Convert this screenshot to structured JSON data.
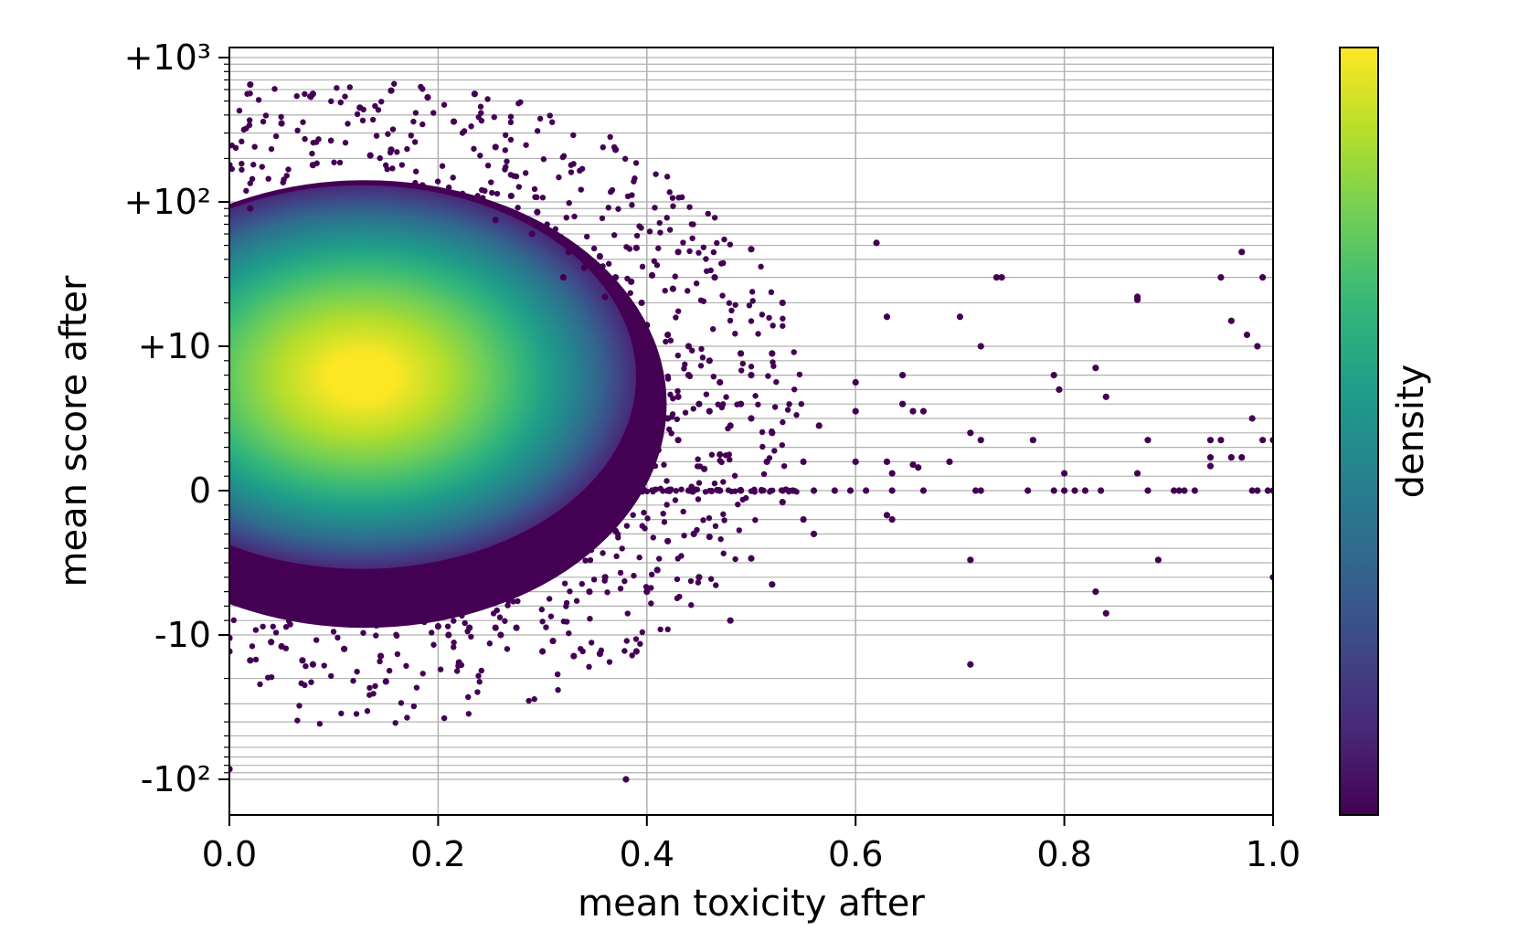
{
  "chart_data": {
    "type": "scatter",
    "title": "",
    "xlabel": "mean toxicity after",
    "ylabel": "mean score after",
    "xlim": [
      0.0,
      1.0
    ],
    "ylim": [
      -180,
      1300
    ],
    "yscale": "symlog",
    "ylinthresh": 10,
    "grid": true,
    "x_ticks": [
      {
        "value": 0.0,
        "label": "0.0"
      },
      {
        "value": 0.2,
        "label": "0.2"
      },
      {
        "value": 0.4,
        "label": "0.4"
      },
      {
        "value": 0.6,
        "label": "0.6"
      },
      {
        "value": 0.8,
        "label": "0.8"
      },
      {
        "value": 1.0,
        "label": "1.0"
      }
    ],
    "y_ticks": [
      {
        "value": 1000,
        "label": "+10³"
      },
      {
        "value": 100,
        "label": "+10²"
      },
      {
        "value": 10,
        "label": "+10"
      },
      {
        "value": 0,
        "label": "0"
      },
      {
        "value": -10,
        "label": "-10"
      },
      {
        "value": -100,
        "label": "-10²"
      }
    ],
    "colorbar": {
      "label": "density",
      "colormap": "viridis",
      "colors": [
        "#440154",
        "#482878",
        "#3e4989",
        "#31688e",
        "#26828e",
        "#1f9e89",
        "#35b779",
        "#6ece58",
        "#b5de2b",
        "#fde725"
      ]
    },
    "density_peak": {
      "x": 0.12,
      "y": 8.5
    },
    "points": [
      [
        0.02,
        650
      ],
      [
        0.08,
        560
      ],
      [
        0.125,
        450
      ],
      [
        0.155,
        590
      ],
      [
        0.19,
        530
      ],
      [
        0.235,
        560
      ],
      [
        0.05,
        350
      ],
      [
        0.215,
        360
      ],
      [
        0.0,
        180
      ],
      [
        0.08,
        180
      ],
      [
        0.135,
        210
      ],
      [
        0.155,
        230
      ],
      [
        0.185,
        130
      ],
      [
        0.255,
        240
      ],
      [
        0.37,
        230
      ],
      [
        0.27,
        110
      ],
      [
        0.295,
        85
      ],
      [
        0.02,
        90
      ],
      [
        0.39,
        48
      ],
      [
        0.43,
        45
      ],
      [
        0.5,
        47
      ],
      [
        0.62,
        52
      ],
      [
        0.465,
        30
      ],
      [
        0.53,
        20
      ],
      [
        0.63,
        16
      ],
      [
        0.7,
        16
      ],
      [
        0.735,
        30
      ],
      [
        0.74,
        30
      ],
      [
        0.87,
        22
      ],
      [
        0.87,
        21
      ],
      [
        0.95,
        30
      ],
      [
        0.97,
        45
      ],
      [
        0.99,
        30
      ],
      [
        0.96,
        15
      ],
      [
        0.975,
        12
      ],
      [
        0.985,
        10
      ],
      [
        0.72,
        10
      ],
      [
        0.645,
        8
      ],
      [
        0.6,
        7.5
      ],
      [
        0.655,
        5.5
      ],
      [
        0.645,
        6
      ],
      [
        0.565,
        4.5
      ],
      [
        0.6,
        5.5
      ],
      [
        0.665,
        5.5
      ],
      [
        0.71,
        4
      ],
      [
        0.79,
        8
      ],
      [
        0.795,
        7
      ],
      [
        0.83,
        8.5
      ],
      [
        0.84,
        6.5
      ],
      [
        0.72,
        3.5
      ],
      [
        0.77,
        3.5
      ],
      [
        0.88,
        3.5
      ],
      [
        0.94,
        3.5
      ],
      [
        0.95,
        3.5
      ],
      [
        0.99,
        3.5
      ],
      [
        1.0,
        3.5
      ],
      [
        0.98,
        5
      ],
      [
        0.6,
        2
      ],
      [
        0.63,
        2
      ],
      [
        0.655,
        1.8
      ],
      [
        0.66,
        1.6
      ],
      [
        0.69,
        2
      ],
      [
        0.8,
        1.2
      ],
      [
        0.87,
        1.2
      ],
      [
        0.94,
        2.3
      ],
      [
        0.94,
        1.7
      ],
      [
        0.96,
        2.3
      ],
      [
        0.97,
        2.3
      ],
      [
        0.635,
        1.2
      ],
      [
        0.595,
        0
      ],
      [
        0.61,
        0
      ],
      [
        0.635,
        0
      ],
      [
        0.665,
        0
      ],
      [
        0.715,
        0
      ],
      [
        0.72,
        0
      ],
      [
        0.765,
        0
      ],
      [
        0.79,
        0
      ],
      [
        0.8,
        0
      ],
      [
        0.81,
        0
      ],
      [
        0.82,
        0
      ],
      [
        0.835,
        0
      ],
      [
        0.88,
        0
      ],
      [
        0.905,
        0
      ],
      [
        0.91,
        0
      ],
      [
        0.915,
        0
      ],
      [
        0.925,
        0
      ],
      [
        0.98,
        0
      ],
      [
        0.985,
        0
      ],
      [
        0.995,
        0
      ],
      [
        1.0,
        0
      ],
      [
        0.52,
        9.5
      ],
      [
        0.5,
        8
      ],
      [
        0.49,
        6
      ],
      [
        0.52,
        4
      ],
      [
        0.515,
        2
      ],
      [
        0.53,
        -0.8
      ],
      [
        0.55,
        -2
      ],
      [
        0.56,
        -3
      ],
      [
        0.635,
        -2
      ],
      [
        0.445,
        -3
      ],
      [
        0.5,
        -4.7
      ],
      [
        0.52,
        -6.5
      ],
      [
        0.45,
        -6
      ],
      [
        0.48,
        -9
      ],
      [
        0.4,
        -7
      ],
      [
        0.41,
        -5.5
      ],
      [
        0.36,
        -6
      ],
      [
        0.63,
        -1.7
      ],
      [
        0.71,
        -4.8
      ],
      [
        0.89,
        -4.8
      ],
      [
        0.83,
        -7
      ],
      [
        0.84,
        -8.5
      ],
      [
        1.0,
        -6
      ],
      [
        0.39,
        -13
      ],
      [
        0.33,
        -14
      ],
      [
        0.355,
        -13.5
      ],
      [
        0.3,
        -13
      ],
      [
        0.31,
        -11
      ],
      [
        0.275,
        -9.5
      ],
      [
        0.255,
        -9.5
      ],
      [
        0.255,
        -7
      ],
      [
        0.22,
        -15.5
      ],
      [
        0.15,
        -21
      ],
      [
        0.145,
        -14
      ],
      [
        0.11,
        -12.5
      ],
      [
        0.08,
        -16
      ],
      [
        0.07,
        -15
      ],
      [
        0.05,
        -12
      ],
      [
        0.02,
        -15
      ],
      [
        0.0,
        -13
      ],
      [
        0.0,
        -10.5
      ],
      [
        0.0,
        -85
      ],
      [
        0.38,
        -100
      ],
      [
        0.71,
        -16
      ],
      [
        0.04,
        -11.2
      ],
      [
        0.13,
        -8
      ],
      [
        0.185,
        -8.5
      ],
      [
        0.2,
        -9.4
      ],
      [
        0.21,
        -10
      ],
      [
        0.23,
        -9.5
      ],
      [
        0.26,
        -10
      ],
      [
        0.345,
        -7
      ],
      [
        0.04,
        -5
      ],
      [
        0.1,
        -6
      ],
      [
        0.05,
        -8
      ],
      [
        0.2,
        -6.5
      ],
      [
        0.28,
        -6
      ],
      [
        0.17,
        -5.5
      ],
      [
        0.37,
        -2.8
      ],
      [
        0.42,
        -3.5
      ],
      [
        0.46,
        -3.2
      ],
      [
        0.55,
        2
      ],
      [
        0.58,
        0
      ],
      [
        0.56,
        0
      ],
      [
        0.54,
        0
      ],
      [
        0.42,
        0
      ],
      [
        0.44,
        0
      ],
      [
        0.47,
        0
      ],
      [
        0.49,
        0
      ],
      [
        0.51,
        0
      ],
      [
        0.53,
        0
      ],
      [
        0.455,
        1.5
      ],
      [
        0.47,
        2.5
      ],
      [
        0.48,
        4.5
      ],
      [
        0.46,
        5.5
      ],
      [
        0.43,
        6.5
      ],
      [
        0.41,
        7
      ],
      [
        0.42,
        5
      ],
      [
        0.45,
        6
      ],
      [
        0.46,
        9
      ],
      [
        0.44,
        10
      ],
      [
        0.47,
        7.5
      ],
      [
        0.5,
        5
      ],
      [
        0.43,
        3.5
      ],
      [
        0.42,
        12
      ],
      [
        0.4,
        14
      ],
      [
        0.41,
        9
      ],
      [
        0.44,
        8
      ],
      [
        0.49,
        9.5
      ],
      [
        0.425,
        25
      ],
      [
        0.395,
        20
      ],
      [
        0.385,
        28
      ],
      [
        0.405,
        31
      ],
      [
        0.34,
        35
      ],
      [
        0.355,
        42
      ],
      [
        0.325,
        45
      ],
      [
        0.37,
        30
      ],
      [
        0.315,
        55
      ],
      [
        0.29,
        60
      ],
      [
        0.255,
        75
      ],
      [
        0.32,
        30
      ],
      [
        0.36,
        22
      ]
    ]
  }
}
